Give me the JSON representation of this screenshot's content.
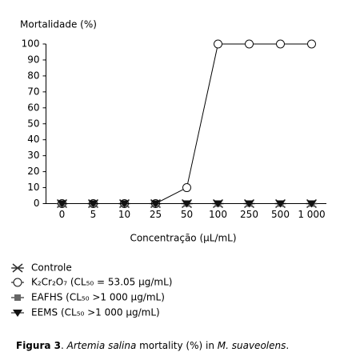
{
  "chart_data": {
    "type": "line",
    "ylabel": "Mortalidade (%)",
    "xlabel": "Concentração (µL/mL)",
    "categories": [
      "0",
      "5",
      "10",
      "25",
      "50",
      "100",
      "250",
      "500",
      "1 000"
    ],
    "ylim": [
      0,
      100
    ],
    "yticks": [
      0,
      10,
      20,
      30,
      40,
      50,
      60,
      70,
      80,
      90,
      100
    ],
    "grid": false,
    "series": [
      {
        "name": "Controle",
        "color": "#333333",
        "marker": "x",
        "values": [
          0,
          0,
          0,
          0,
          0,
          0,
          0,
          0,
          0
        ]
      },
      {
        "name": "K₂Cr₂O₇ (CL₅₀ = 53.05 µg/mL)",
        "color": "#111111",
        "marker": "circle",
        "values": [
          0,
          0,
          0,
          0,
          10,
          100,
          100,
          100,
          100
        ]
      },
      {
        "name": "EAFHS (CL₅₀ >1 000 µg/mL)",
        "color": "#666666",
        "marker": "square",
        "values": [
          0,
          0,
          0,
          0,
          0,
          0,
          0,
          0,
          0
        ]
      },
      {
        "name": "EEMS (CL₅₀ >1 000 µg/mL)",
        "color": "#111111",
        "marker": "triangle-down",
        "values": [
          0,
          0,
          0,
          0,
          0,
          0,
          0,
          0,
          0
        ]
      }
    ],
    "caption": [
      "Figura 3",
      ". ",
      "Artemia salina",
      " mortality (%) in ",
      "M. suaveolens",
      "."
    ]
  }
}
